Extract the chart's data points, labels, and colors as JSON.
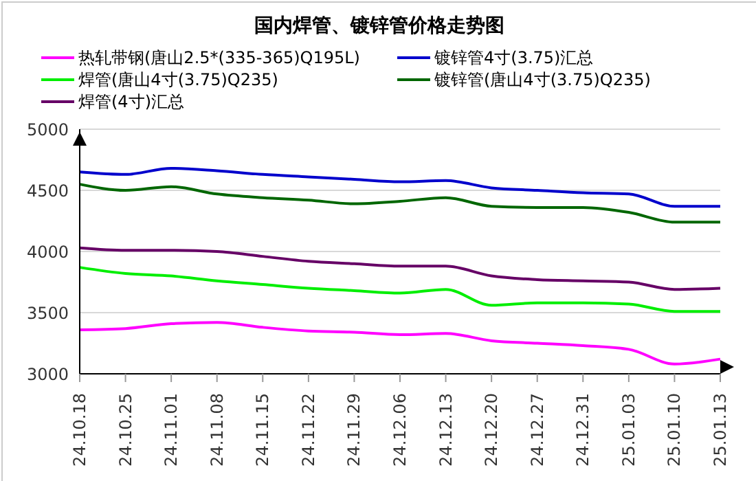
{
  "chart_data": {
    "type": "line",
    "title": "国内焊管、镀锌管价格走势图",
    "categories": [
      "24.10.18",
      "24.10.25",
      "24.11.01",
      "24.11.08",
      "24.11.15",
      "24.11.22",
      "24.11.29",
      "24.12.06",
      "24.12.13",
      "24.12.20",
      "24.12.27",
      "24.12.31",
      "25.01.03",
      "25.01.10",
      "25.01.13"
    ],
    "series": [
      {
        "name": "热轧带钢(唐山2.5*(335-365)Q195L)",
        "color": "#ff00ff",
        "values": [
          3360,
          3370,
          3410,
          3420,
          3380,
          3350,
          3340,
          3320,
          3330,
          3270,
          3250,
          3230,
          3200,
          3080,
          3120
        ]
      },
      {
        "name": "镀锌管4寸(3.75)汇总",
        "color": "#0000cc",
        "values": [
          4650,
          4630,
          4680,
          4660,
          4630,
          4610,
          4590,
          4570,
          4580,
          4520,
          4500,
          4480,
          4470,
          4370,
          4370
        ]
      },
      {
        "name": "焊管(唐山4寸(3.75)Q235)",
        "color": "#00ee00",
        "values": [
          3870,
          3820,
          3800,
          3760,
          3730,
          3700,
          3680,
          3660,
          3690,
          3560,
          3580,
          3580,
          3570,
          3510,
          3510
        ]
      },
      {
        "name": "镀锌管(唐山4寸(3.75)Q235)",
        "color": "#006600",
        "values": [
          4550,
          4500,
          4530,
          4470,
          4440,
          4420,
          4390,
          4410,
          4440,
          4370,
          4360,
          4360,
          4320,
          4240,
          4240
        ]
      },
      {
        "name": "焊管(4寸)汇总",
        "color": "#660066",
        "values": [
          4030,
          4010,
          4010,
          4000,
          3960,
          3920,
          3900,
          3880,
          3880,
          3800,
          3770,
          3760,
          3750,
          3690,
          3700
        ]
      }
    ],
    "ylim": [
      3000,
      5000
    ],
    "yticks": [
      3000,
      3500,
      4000,
      4500,
      5000
    ],
    "grid": "y",
    "legend": "top",
    "marker": "none",
    "line_style": "solid"
  }
}
